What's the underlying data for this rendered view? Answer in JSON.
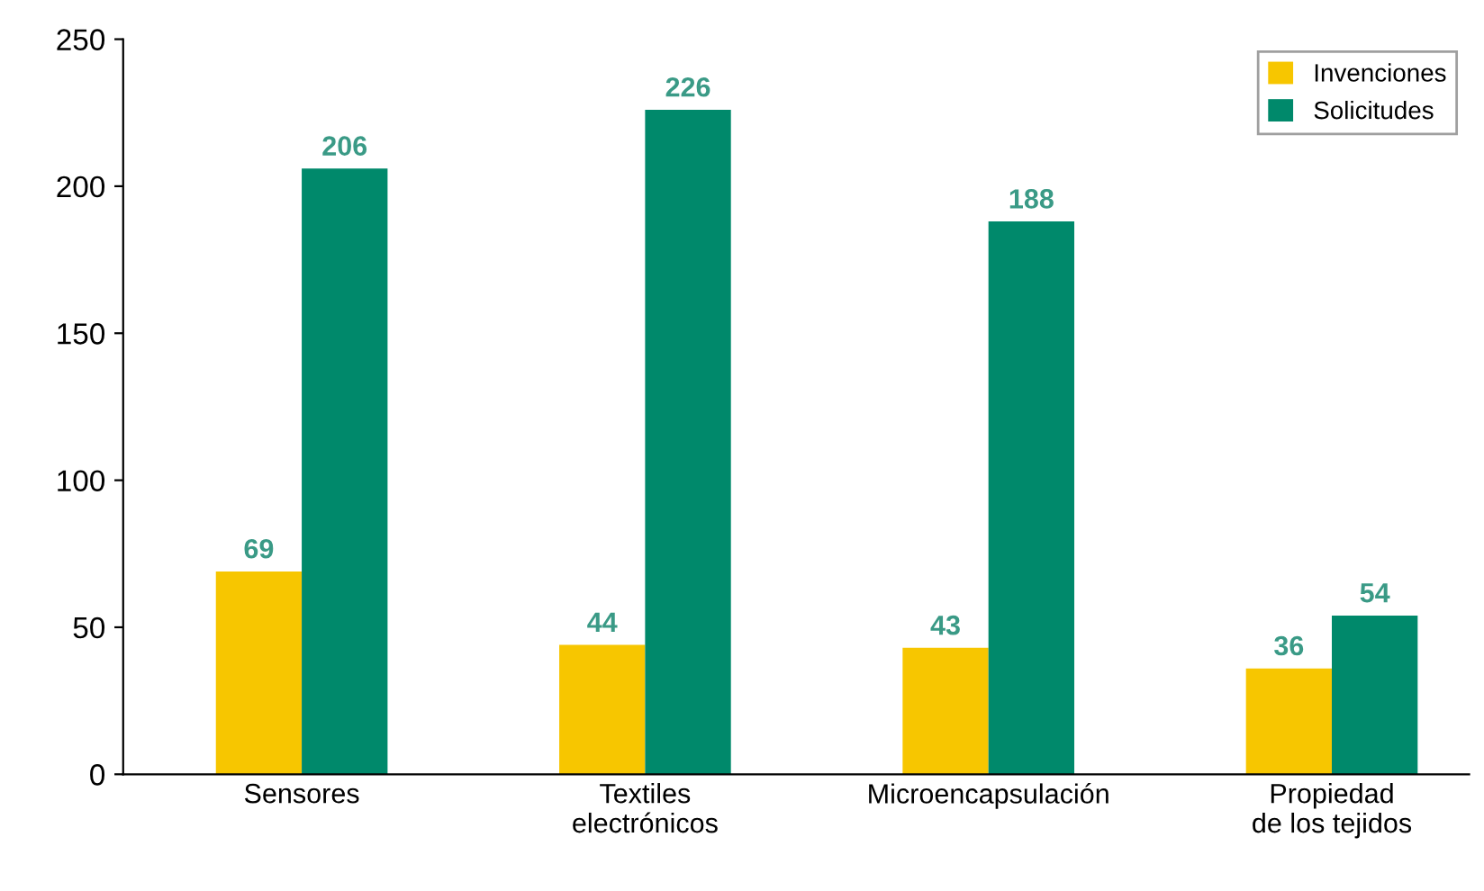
{
  "chart_data": {
    "type": "bar",
    "categories": [
      "Sensores",
      "Textiles\nelectrónicos",
      "Microencapsulación",
      "Propiedad\nde los tejidos"
    ],
    "series": [
      {
        "name": "Invenciones",
        "color": "#f7c600",
        "values": [
          69,
          44,
          43,
          36
        ]
      },
      {
        "name": "Solicitudes",
        "color": "#00896b",
        "values": [
          206,
          226,
          188,
          54
        ]
      }
    ],
    "ylim": [
      0,
      250
    ],
    "yticks": [
      0,
      50,
      100,
      150,
      200,
      250
    ],
    "data_labels": true,
    "legend": "top right",
    "grid": false
  }
}
